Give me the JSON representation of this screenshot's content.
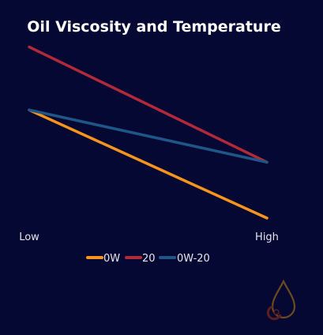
{
  "chart_data": {
    "type": "line",
    "title": "Oil Viscosity and Temperature",
    "xlabel": "",
    "ylabel": "",
    "categories": [
      "Low",
      "High"
    ],
    "ylim": [
      0,
      100
    ],
    "grid": false,
    "legend_position": "bottom",
    "series": [
      {
        "name": "0W",
        "values": [
          60,
          0
        ],
        "color": "#f7941d"
      },
      {
        "name": "20",
        "values": [
          95,
          31
        ],
        "color": "#b22a3a"
      },
      {
        "name": "0W-20",
        "values": [
          60,
          31
        ],
        "color": "#1f5688"
      }
    ]
  },
  "logo": {
    "icon": "oil-drop-gear-icon",
    "color": "#6b4a1e"
  }
}
